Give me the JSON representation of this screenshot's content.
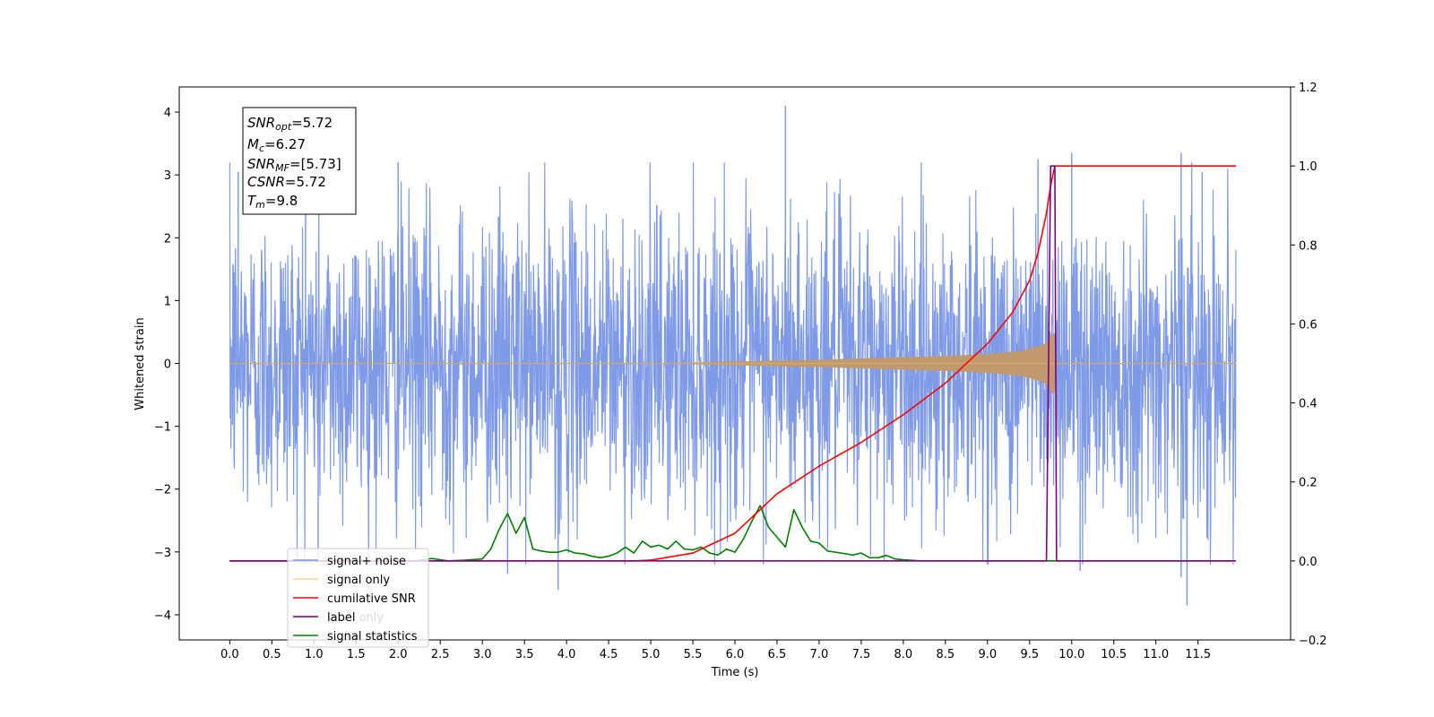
{
  "chart_data": {
    "type": "line",
    "xlabel": "Time (s)",
    "ylabel": "Whitened strain",
    "xlim": [
      -0.6,
      12.6
    ],
    "ylim": [
      -4.4,
      4.4
    ],
    "y2lim": [
      -0.2,
      1.2
    ],
    "x_ticks": [
      "0.0",
      "0.5",
      "1.0",
      "1.5",
      "2.0",
      "2.5",
      "3.0",
      "3.5",
      "4.0",
      "4.5",
      "5.0",
      "5.5",
      "6.0",
      "6.5",
      "7.0",
      "7.5",
      "8.0",
      "8.5",
      "9.0",
      "9.5",
      "10.0",
      "10.5",
      "11.0",
      "11.5"
    ],
    "y_ticks": [
      "−4",
      "−3",
      "−2",
      "−1",
      "0",
      "1",
      "2",
      "3",
      "4"
    ],
    "y2_ticks": [
      "−0.2",
      "0.0",
      "0.2",
      "0.4",
      "0.6",
      "0.8",
      "1.0",
      "1.2"
    ],
    "grid": false,
    "legend_placement": "bottom-left",
    "annotation": {
      "snr_opt": {
        "base": "SNR",
        "sub": "opt",
        "value": "=5.72"
      },
      "mc": {
        "base": "M",
        "sub": "c",
        "value": "=6.27"
      },
      "snr_mf": {
        "base": "SNR",
        "sub": "MF",
        "value": "=[5.73]"
      },
      "csnr": {
        "base": "CSNR",
        "sub": "",
        "value": "=5.72"
      },
      "tm": {
        "base": "T",
        "sub": "m",
        "value": "=9.8"
      }
    },
    "series": [
      {
        "name": "signal+ noise",
        "axis": "left",
        "color": "#7895e6",
        "noise_sigma": 1.2,
        "spike_peaks": [
          [
            0.05,
            1.45
          ],
          [
            0.1,
            3.05
          ],
          [
            0.9,
            3.2
          ],
          [
            2.0,
            3.2
          ],
          [
            6.6,
            4.1
          ],
          [
            9.6,
            3.25
          ],
          [
            10.0,
            3.35
          ],
          [
            11.3,
            3.35
          ],
          [
            11.55,
            3.05
          ],
          [
            11.37,
            -3.85
          ],
          [
            3.9,
            -3.6
          ],
          [
            11.3,
            -3.4
          ],
          [
            10.1,
            -3.3
          ],
          [
            3.3,
            -3.35
          ],
          [
            1.05,
            -3.1
          ]
        ]
      },
      {
        "name": "signal only",
        "axis": "left",
        "color": "#ffb347",
        "envelope_t": [
          0.0,
          5.0,
          6.0,
          7.0,
          8.0,
          8.5,
          9.0,
          9.4,
          9.6,
          9.7,
          9.78,
          9.8,
          9.82,
          11.95
        ],
        "envelope_a": [
          0.0,
          0.0,
          0.03,
          0.06,
          0.1,
          0.12,
          0.15,
          0.2,
          0.27,
          0.33,
          0.5,
          0.45,
          0.0,
          0.0
        ]
      },
      {
        "name": "cumilative SNR",
        "axis": "right",
        "color": "#ff0000",
        "x": [
          0.0,
          4.0,
          4.8,
          5.0,
          5.5,
          6.0,
          6.5,
          7.0,
          7.5,
          8.0,
          8.5,
          9.0,
          9.3,
          9.5,
          9.6,
          9.7,
          9.75,
          9.8,
          11.95
        ],
        "y": [
          0.0,
          0.0,
          0.0,
          0.002,
          0.02,
          0.07,
          0.17,
          0.24,
          0.3,
          0.37,
          0.45,
          0.55,
          0.63,
          0.71,
          0.78,
          0.88,
          0.95,
          1.0,
          1.0
        ]
      },
      {
        "name": "label",
        "axis": "right",
        "color": "#800080",
        "x": [
          0.0,
          9.7,
          9.75,
          9.8,
          9.82,
          11.95
        ],
        "y": [
          0.0,
          0.0,
          1.0,
          1.0,
          0.0,
          0.0
        ]
      },
      {
        "name": "label only",
        "axis": "right",
        "color": "#ffb347",
        "hidden": true
      },
      {
        "name": "signal statistics",
        "axis": "right",
        "color": "#008000",
        "x": [
          0.0,
          2.0,
          2.2,
          2.4,
          2.6,
          2.8,
          3.0,
          3.1,
          3.2,
          3.3,
          3.4,
          3.5,
          3.6,
          3.7,
          3.8,
          3.9,
          4.0,
          4.1,
          4.2,
          4.3,
          4.4,
          4.5,
          4.6,
          4.7,
          4.8,
          4.9,
          5.0,
          5.1,
          5.2,
          5.3,
          5.4,
          5.5,
          5.6,
          5.7,
          5.8,
          5.9,
          6.0,
          6.1,
          6.2,
          6.3,
          6.4,
          6.5,
          6.6,
          6.7,
          6.8,
          6.9,
          7.0,
          7.1,
          7.2,
          7.4,
          7.5,
          7.6,
          7.7,
          7.8,
          7.9,
          8.0,
          8.2,
          8.5,
          9.0,
          9.5,
          10.0,
          11.0,
          11.9
        ],
        "y": [
          0.0,
          0.0,
          0.0,
          0.006,
          0.0,
          0.002,
          0.005,
          0.03,
          0.08,
          0.12,
          0.07,
          0.11,
          0.03,
          0.025,
          0.022,
          0.022,
          0.028,
          0.02,
          0.018,
          0.012,
          0.008,
          0.012,
          0.02,
          0.035,
          0.02,
          0.05,
          0.035,
          0.04,
          0.03,
          0.05,
          0.03,
          0.028,
          0.035,
          0.02,
          0.015,
          0.03,
          0.022,
          0.055,
          0.1,
          0.14,
          0.085,
          0.06,
          0.035,
          0.13,
          0.085,
          0.05,
          0.045,
          0.025,
          0.022,
          0.015,
          0.02,
          0.008,
          0.008,
          0.014,
          0.005,
          0.003,
          0.0,
          0.0,
          0.0,
          0.0,
          0.0,
          0.0,
          0.0
        ]
      }
    ]
  }
}
